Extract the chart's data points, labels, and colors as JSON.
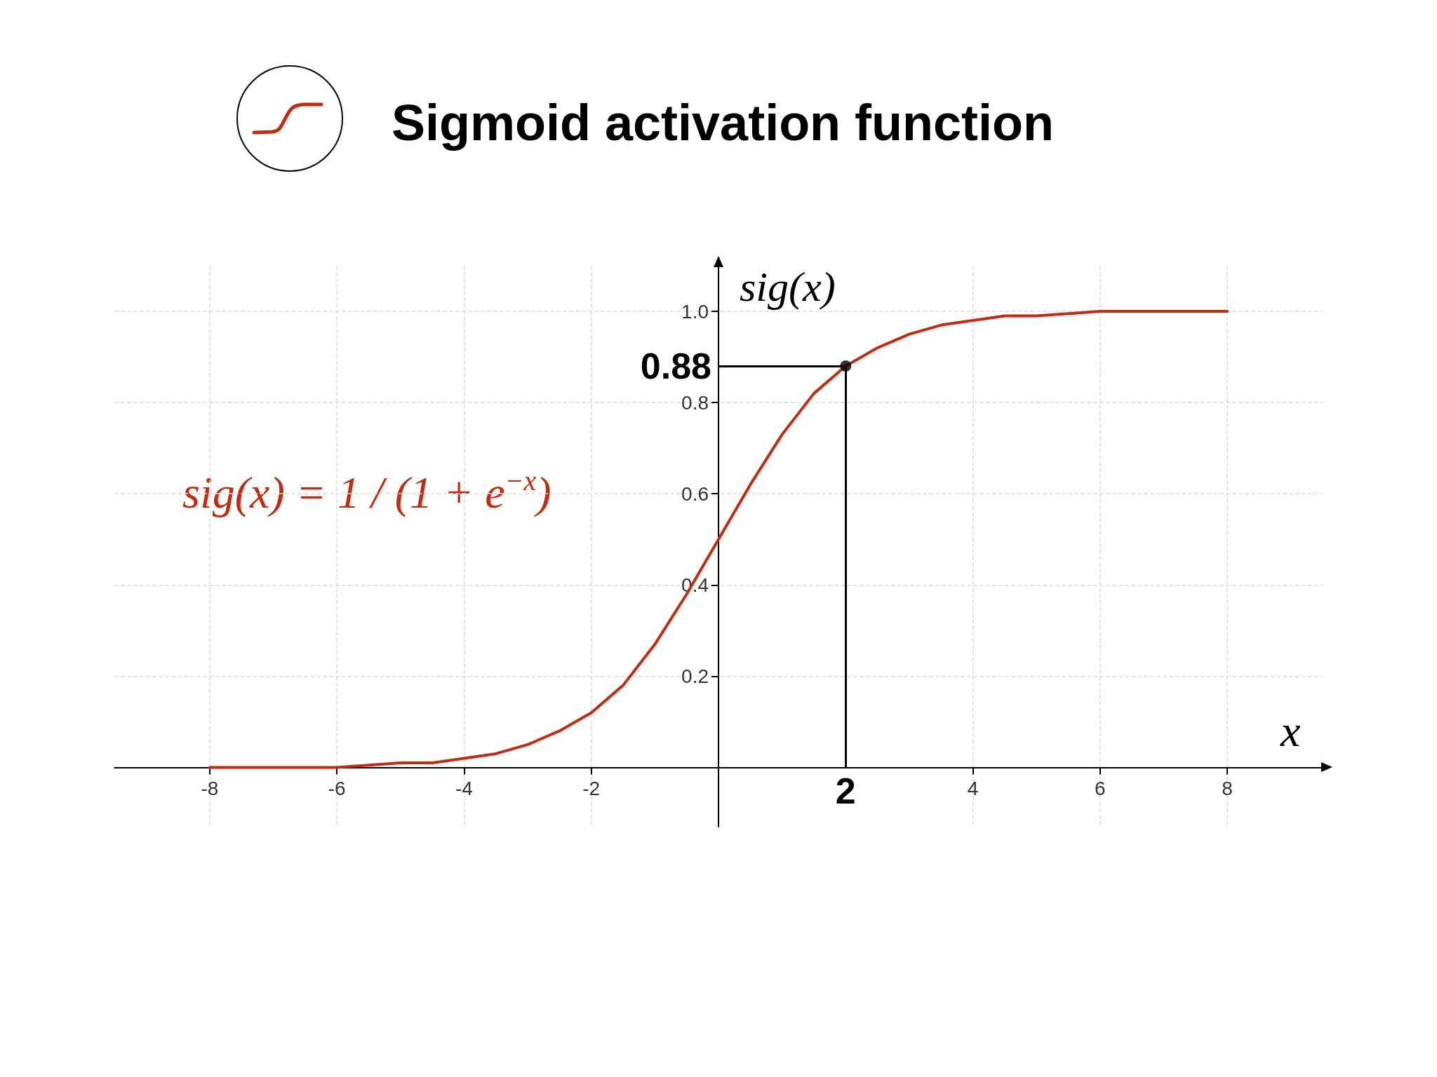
{
  "chart_data": {
    "type": "line",
    "title": "Sigmoid activation function",
    "xlabel": "x",
    "ylabel": "sig(x)",
    "x": [
      -8,
      -7,
      -6,
      -5,
      -4.5,
      -4,
      -3.5,
      -3,
      -2.5,
      -2,
      -1.5,
      -1,
      -0.5,
      0,
      0.5,
      1,
      1.5,
      2,
      2.5,
      3,
      3.5,
      4,
      4.5,
      5,
      6,
      7,
      8
    ],
    "series": [
      {
        "color": "#c82a10",
        "values": [
          0.0,
          0.0,
          0.0,
          0.01,
          0.01,
          0.02,
          0.03,
          0.05,
          0.08,
          0.12,
          0.18,
          0.27,
          0.38,
          0.5,
          0.62,
          0.73,
          0.82,
          0.88,
          0.92,
          0.95,
          0.97,
          0.98,
          0.99,
          0.99,
          1,
          1,
          1
        ]
      },
      {
        "type": "scatter",
        "color": "#000000",
        "x": [
          2
        ],
        "values": [
          0.88
        ],
        "marker": "circle"
      }
    ],
    "xlim": [
      -9.5,
      9.5
    ],
    "ylim": [
      -0.13,
      1.1
    ],
    "xticks": [
      -8,
      -6,
      -4,
      -2,
      4,
      6,
      8
    ],
    "yticks": [
      0.2,
      0.4,
      0.6,
      0.8,
      {
        "value": 1,
        "label": "1.0"
      }
    ],
    "ref_lines": [
      {
        "axis": "x",
        "value": 2,
        "label": "2",
        "color": "#000000"
      },
      {
        "axis": "y",
        "value": 0.88,
        "label": "0.88",
        "color": "#000000"
      }
    ],
    "annotations": [
      "sig(x) = 1 / (1 + e$^{−x}$)"
    ],
    "grid": true,
    "line_style": "solid"
  }
}
